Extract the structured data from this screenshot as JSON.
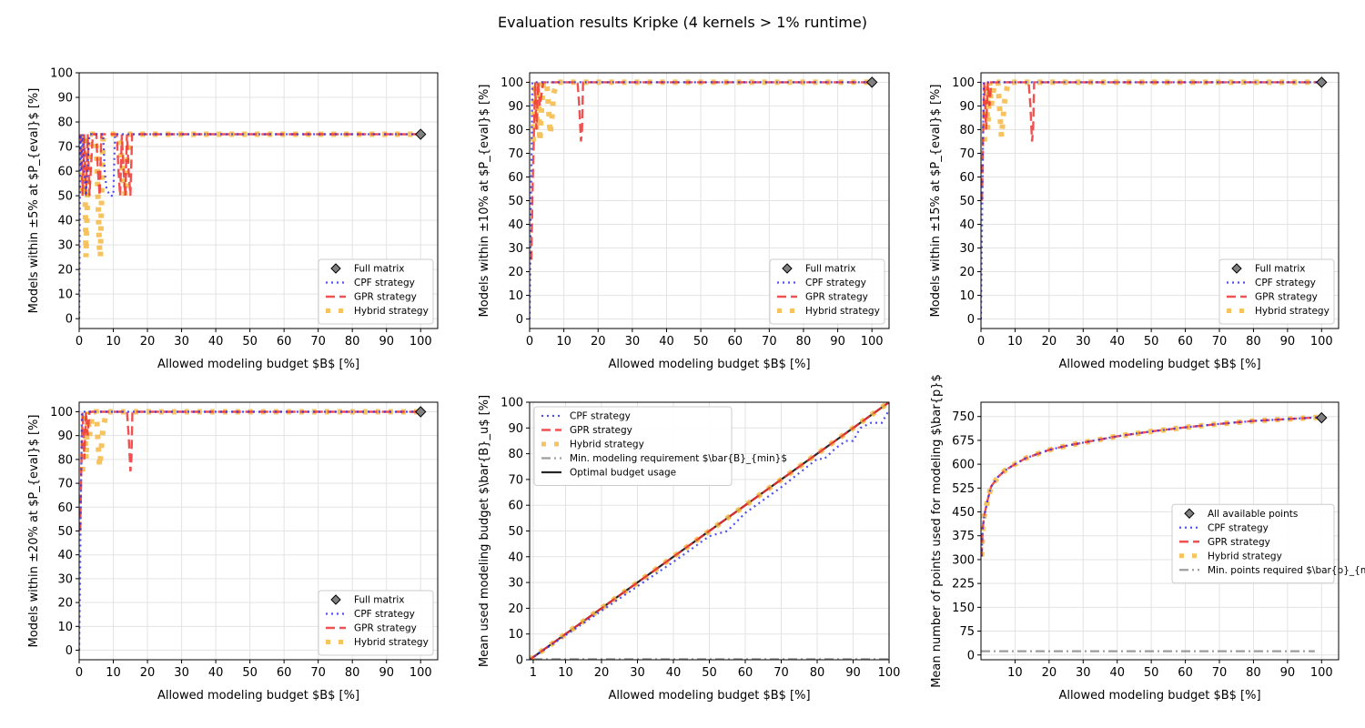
{
  "suptitle": "Evaluation results Kripke (4 kernels > 1% runtime)",
  "colors": {
    "cpf": "#3333ee",
    "gpr": "#ee3333",
    "hybrid": "#f5b842",
    "full": "#808080",
    "optimal": "#000000",
    "minreq": "#8c8c8c"
  },
  "chart_data": [
    {
      "id": "acc5",
      "type": "line",
      "title": "",
      "xlabel": "Allowed modeling budget $B$ [%]",
      "ylabel": "Models within ±5% at $P_{eval}$ [%]",
      "xlim": [
        0,
        105
      ],
      "ylim": [
        -4,
        100
      ],
      "xticks": [
        0,
        10,
        20,
        30,
        40,
        50,
        60,
        70,
        80,
        90,
        100
      ],
      "yticks": [
        0,
        10,
        20,
        30,
        40,
        50,
        60,
        70,
        80,
        90,
        100
      ],
      "legend": "lower-right",
      "legend_labels": [
        "Full matrix",
        "CPF strategy",
        "GPR strategy",
        "Hybrid strategy"
      ],
      "marker": {
        "x": 100,
        "y": 75
      },
      "series": [
        {
          "name": "CPF strategy",
          "x": [
            0,
            0.1,
            0.2,
            0.3,
            0.6,
            1,
            1.5,
            2,
            3,
            5,
            7,
            7.5,
            8,
            9,
            10,
            10.5,
            11,
            12,
            14,
            20,
            40,
            60,
            80,
            100
          ],
          "y": [
            0,
            25,
            50,
            75,
            60,
            75,
            60,
            50,
            75,
            75,
            75,
            60,
            53,
            50,
            50,
            75,
            75,
            75,
            75,
            75,
            75,
            75,
            75,
            75
          ]
        },
        {
          "name": "GPR strategy",
          "x": [
            0.5,
            0.8,
            1,
            1.5,
            2,
            2.5,
            3,
            4,
            5,
            5.5,
            6,
            6.5,
            7,
            11,
            11.5,
            12,
            12.5,
            13,
            13.5,
            14,
            14.5,
            15,
            15.5,
            16,
            20,
            40,
            60,
            80,
            100
          ],
          "y": [
            75,
            60,
            50,
            75,
            50,
            75,
            50,
            75,
            75,
            60,
            50,
            75,
            75,
            75,
            60,
            50,
            75,
            60,
            50,
            75,
            60,
            50,
            75,
            75,
            75,
            75,
            75,
            75,
            75
          ]
        },
        {
          "name": "Hybrid strategy",
          "x": [
            0.5,
            1,
            1.5,
            2,
            2.5,
            3,
            4,
            5,
            5.3,
            5.6,
            5.9,
            6.2,
            6.5,
            6.8,
            7,
            8,
            9,
            10,
            11,
            12,
            12.5,
            13,
            13.5,
            14,
            15,
            20,
            40,
            60,
            80,
            100
          ],
          "y": [
            75,
            50,
            75,
            25,
            55,
            75,
            75,
            70,
            60,
            45,
            30,
            25,
            45,
            62,
            73,
            75,
            75,
            75,
            75,
            72,
            64,
            55,
            50,
            65,
            75,
            75,
            75,
            75,
            75,
            75
          ]
        }
      ]
    },
    {
      "id": "acc10",
      "type": "line",
      "title": "",
      "xlabel": "Allowed modeling budget $B$ [%]",
      "ylabel": "Models within ±10% at $P_{eval}$ [%]",
      "xlim": [
        0,
        105
      ],
      "ylim": [
        -4,
        104
      ],
      "xticks": [
        0,
        10,
        20,
        30,
        40,
        50,
        60,
        70,
        80,
        90,
        100
      ],
      "yticks": [
        0,
        10,
        20,
        30,
        40,
        50,
        60,
        70,
        80,
        90,
        100
      ],
      "legend": "lower-right",
      "legend_labels": [
        "Full matrix",
        "CPF strategy",
        "GPR strategy",
        "Hybrid strategy"
      ],
      "marker": {
        "x": 100,
        "y": 100
      },
      "series": [
        {
          "name": "CPF strategy",
          "x": [
            0,
            0.2,
            0.4,
            0.6,
            0.8,
            1,
            2,
            5,
            20,
            40,
            60,
            80,
            100
          ],
          "y": [
            0,
            25,
            50,
            75,
            100,
            100,
            100,
            100,
            100,
            100,
            100,
            100,
            100
          ]
        },
        {
          "name": "GPR strategy",
          "x": [
            0.5,
            0.8,
            1.2,
            1.6,
            2,
            2.5,
            3,
            4,
            14,
            14.5,
            15,
            15.3,
            15.6,
            16,
            20,
            40,
            60,
            80,
            100
          ],
          "y": [
            25,
            50,
            75,
            100,
            80,
            100,
            90,
            100,
            100,
            90,
            75,
            80,
            100,
            100,
            100,
            100,
            100,
            100,
            100
          ]
        },
        {
          "name": "Hybrid strategy",
          "x": [
            1,
            1.5,
            2,
            2.5,
            3,
            3.5,
            4,
            5,
            5.5,
            6,
            6.5,
            7,
            8,
            20,
            40,
            60,
            80,
            100
          ],
          "y": [
            75,
            100,
            80,
            100,
            75,
            90,
            100,
            100,
            90,
            78,
            85,
            95,
            100,
            100,
            100,
            100,
            100,
            100
          ]
        }
      ]
    },
    {
      "id": "acc15",
      "type": "line",
      "title": "",
      "xlabel": "Allowed modeling budget $B$ [%]",
      "ylabel": "Models within ±15% at $P_{eval}$ [%]",
      "xlim": [
        0,
        105
      ],
      "ylim": [
        -4,
        104
      ],
      "xticks": [
        0,
        10,
        20,
        30,
        40,
        50,
        60,
        70,
        80,
        90,
        100
      ],
      "yticks": [
        0,
        10,
        20,
        30,
        40,
        50,
        60,
        70,
        80,
        90,
        100
      ],
      "legend": "lower-right",
      "legend_labels": [
        "Full matrix",
        "CPF strategy",
        "GPR strategy",
        "Hybrid strategy"
      ],
      "marker": {
        "x": 100,
        "y": 100
      },
      "series": [
        {
          "name": "CPF strategy",
          "x": [
            0,
            0.2,
            0.4,
            0.6,
            0.8,
            1,
            2,
            5,
            20,
            40,
            60,
            80,
            100
          ],
          "y": [
            0,
            25,
            50,
            75,
            100,
            100,
            100,
            100,
            100,
            100,
            100,
            100,
            100
          ]
        },
        {
          "name": "GPR strategy",
          "x": [
            0.3,
            0.6,
            1,
            1.5,
            2,
            2.5,
            3,
            14,
            14.5,
            15,
            15.3,
            15.6,
            16,
            20,
            40,
            60,
            80,
            100
          ],
          "y": [
            50,
            75,
            100,
            80,
            100,
            90,
            100,
            100,
            90,
            75,
            80,
            100,
            100,
            100,
            100,
            100,
            100,
            100
          ]
        },
        {
          "name": "Hybrid strategy",
          "x": [
            1,
            1.5,
            2,
            2.5,
            3,
            4,
            5,
            5.5,
            6,
            6.5,
            7,
            8,
            20,
            40,
            60,
            80,
            100
          ],
          "y": [
            75,
            100,
            80,
            100,
            90,
            100,
            100,
            88,
            77,
            85,
            93,
            100,
            100,
            100,
            100,
            100,
            100
          ]
        }
      ]
    },
    {
      "id": "acc20",
      "type": "line",
      "title": "",
      "xlabel": "Allowed modeling budget $B$ [%]",
      "ylabel": "Models within ±20% at $P_{eval}$ [%]",
      "xlim": [
        0,
        105
      ],
      "ylim": [
        -4,
        104
      ],
      "xticks": [
        0,
        10,
        20,
        30,
        40,
        50,
        60,
        70,
        80,
        90,
        100
      ],
      "yticks": [
        0,
        10,
        20,
        30,
        40,
        50,
        60,
        70,
        80,
        90,
        100
      ],
      "legend": "lower-right",
      "legend_labels": [
        "Full matrix",
        "CPF strategy",
        "GPR strategy",
        "Hybrid strategy"
      ],
      "marker": {
        "x": 100,
        "y": 100
      },
      "series": [
        {
          "name": "CPF strategy",
          "x": [
            0,
            0.2,
            0.4,
            0.6,
            0.8,
            1,
            2,
            5,
            20,
            40,
            60,
            80,
            100
          ],
          "y": [
            0,
            25,
            50,
            75,
            100,
            100,
            100,
            100,
            100,
            100,
            100,
            100,
            100
          ]
        },
        {
          "name": "GPR strategy",
          "x": [
            0.3,
            0.6,
            1,
            1.5,
            2,
            2.5,
            3,
            14,
            14.5,
            15,
            15.3,
            15.6,
            16,
            20,
            40,
            60,
            80,
            100
          ],
          "y": [
            50,
            75,
            100,
            80,
            100,
            90,
            100,
            100,
            90,
            75,
            80,
            100,
            100,
            100,
            100,
            100,
            100,
            100
          ]
        },
        {
          "name": "Hybrid strategy",
          "x": [
            1,
            1.5,
            2,
            2.5,
            3,
            4,
            5,
            5.5,
            6,
            6.5,
            7,
            8,
            20,
            40,
            60,
            80,
            100
          ],
          "y": [
            75,
            100,
            80,
            100,
            90,
            100,
            100,
            88,
            77,
            85,
            93,
            100,
            100,
            100,
            100,
            100,
            100
          ]
        }
      ]
    },
    {
      "id": "budget",
      "type": "line",
      "title": "",
      "xlabel": "Allowed modeling budget $B$ [%]",
      "ylabel": "Mean used modeling budget $\\bar{B}_u$ [%]",
      "xlim": [
        0,
        100
      ],
      "ylim": [
        0,
        100
      ],
      "xticks": [
        1,
        10,
        20,
        30,
        40,
        50,
        60,
        70,
        80,
        90,
        100
      ],
      "yticks": [
        0,
        10,
        20,
        30,
        40,
        50,
        60,
        70,
        80,
        90,
        100
      ],
      "legend": "upper-left",
      "legend_labels": [
        "CPF strategy",
        "GPR strategy",
        "Hybrid strategy",
        "Min. modeling requirement $\\bar{B}_{min}$",
        "Optimal budget usage"
      ],
      "series": [
        {
          "name": "Optimal budget usage",
          "x": [
            0,
            100
          ],
          "y": [
            0,
            100
          ]
        },
        {
          "name": "CPF strategy",
          "x": [
            0,
            10,
            20,
            30,
            40,
            50,
            55,
            60,
            70,
            80,
            82,
            85,
            88,
            90,
            92,
            95,
            98,
            100
          ],
          "y": [
            0,
            9.5,
            19,
            28.5,
            38,
            48,
            50,
            57,
            67,
            78,
            78,
            82,
            85,
            85,
            90,
            92,
            92,
            97
          ]
        },
        {
          "name": "GPR strategy",
          "x": [
            0,
            25,
            50,
            75,
            100
          ],
          "y": [
            0,
            25,
            50,
            75,
            100
          ]
        },
        {
          "name": "Hybrid strategy",
          "x": [
            0,
            25,
            50,
            75,
            100
          ],
          "y": [
            0,
            25,
            50,
            75,
            100
          ]
        },
        {
          "name": "Min. modeling requirement $\\bar{B}_{min}$",
          "x": [
            1,
            100
          ],
          "y": [
            0.2,
            0.2
          ]
        }
      ]
    },
    {
      "id": "points",
      "type": "line",
      "title": "",
      "xlabel": "Allowed modeling budget $B$ [%]",
      "ylabel": "Mean number of points used for modeling $\\bar{p}$",
      "xlim": [
        0,
        105
      ],
      "ylim": [
        -15,
        795
      ],
      "xticks": [
        10,
        20,
        30,
        40,
        50,
        60,
        70,
        80,
        90,
        100
      ],
      "yticks": [
        0,
        75,
        150,
        225,
        300,
        375,
        450,
        525,
        600,
        675,
        750
      ],
      "legend": "center-right",
      "legend_labels": [
        "All available points",
        "CPF strategy",
        "GPR strategy",
        "Hybrid strategy",
        "Min. points required $\\bar{p}_{min}$"
      ],
      "marker": {
        "x": 100,
        "y": 746
      },
      "series": [
        {
          "name": "CPF strategy",
          "x": [
            0.2,
            0.5,
            1,
            2,
            3,
            5,
            7,
            10,
            13,
            16,
            20,
            25,
            30,
            40,
            50,
            60,
            70,
            80,
            90,
            100
          ],
          "y": [
            310,
            400,
            440,
            490,
            530,
            560,
            580,
            600,
            618,
            630,
            645,
            658,
            668,
            688,
            703,
            716,
            727,
            736,
            742,
            748
          ]
        },
        {
          "name": "GPR strategy",
          "x": [
            0.2,
            0.5,
            1,
            2,
            3,
            5,
            7,
            10,
            13,
            16,
            20,
            25,
            30,
            40,
            50,
            60,
            70,
            80,
            90,
            100
          ],
          "y": [
            310,
            400,
            440,
            490,
            530,
            560,
            580,
            600,
            618,
            630,
            645,
            658,
            668,
            688,
            703,
            716,
            727,
            736,
            742,
            748
          ]
        },
        {
          "name": "Hybrid strategy",
          "x": [
            0.2,
            0.5,
            1,
            2,
            3,
            5,
            7,
            10,
            13,
            16,
            20,
            25,
            30,
            40,
            50,
            60,
            70,
            80,
            90,
            100
          ],
          "y": [
            310,
            400,
            440,
            490,
            530,
            560,
            580,
            600,
            618,
            630,
            645,
            658,
            668,
            688,
            703,
            716,
            727,
            736,
            742,
            748
          ]
        },
        {
          "name": "Min. points required $\\bar{p}_{min}$",
          "x": [
            0,
            98
          ],
          "y": [
            12,
            12
          ]
        }
      ]
    }
  ]
}
